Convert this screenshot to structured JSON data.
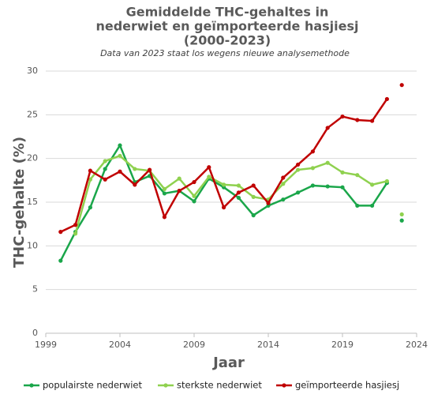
{
  "chart_data": {
    "type": "line",
    "title": [
      "Gemiddelde THC-gehaltes in",
      "nederwiet en geïmporteerde hasjiesj",
      "(2000-2023)"
    ],
    "subtitle": "Data van 2023 staat los wegens nieuwe analysemethode",
    "x_label": "Jaar",
    "y_label": "THC-gehalte (%)",
    "x": [
      2000,
      2001,
      2002,
      2003,
      2004,
      2005,
      2006,
      2007,
      2008,
      2009,
      2010,
      2011,
      2012,
      2013,
      2014,
      2015,
      2016,
      2017,
      2018,
      2019,
      2020,
      2021,
      2022,
      2023
    ],
    "unconnected_x": 2023,
    "series": [
      {
        "name": "populairste nederwiet",
        "color": "#1aa64a",
        "values": [
          8.3,
          11.6,
          14.4,
          18.8,
          21.5,
          17.3,
          18.0,
          16.0,
          16.3,
          15.1,
          17.7,
          16.7,
          15.5,
          13.5,
          14.6,
          15.3,
          16.1,
          16.9,
          16.8,
          16.7,
          14.6,
          14.6,
          17.2,
          12.9
        ]
      },
      {
        "name": "sterkste nederwiet",
        "color": "#8fd14f",
        "values": [
          null,
          11.4,
          17.6,
          19.7,
          20.3,
          18.8,
          18.6,
          16.5,
          17.7,
          15.7,
          17.9,
          17.0,
          16.9,
          15.6,
          15.3,
          17.1,
          18.7,
          18.9,
          19.5,
          18.4,
          18.1,
          17.0,
          17.4,
          13.6
        ]
      },
      {
        "name": "geïmporteerde hasjiesj",
        "color": "#c00000",
        "values": [
          11.6,
          12.4,
          18.6,
          17.6,
          18.5,
          17.0,
          18.7,
          13.3,
          16.3,
          17.3,
          19.0,
          14.4,
          16.1,
          16.9,
          14.9,
          17.8,
          19.3,
          20.8,
          23.5,
          24.8,
          24.4,
          24.3,
          26.8,
          28.4
        ]
      }
    ],
    "xlim": [
      1999,
      2024
    ],
    "xticks": [
      1999,
      2004,
      2009,
      2014,
      2019,
      2024
    ],
    "ylim": [
      0,
      30
    ],
    "yticks": [
      0,
      5,
      10,
      15,
      20,
      25,
      30
    ],
    "grid": true,
    "legend": "bottom"
  }
}
